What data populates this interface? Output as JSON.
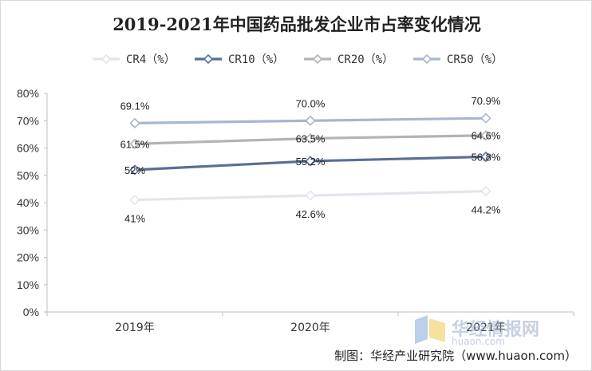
{
  "title": "2019-2021年中国药品批发企业市占率变化情况",
  "credit": "制图：华经产业研究院（www.huaon.com）",
  "watermark": {
    "text": "华经情报网",
    "url": "huaon.com"
  },
  "chart_data": {
    "type": "line",
    "categories": [
      "2019年",
      "2020年",
      "2021年"
    ],
    "series": [
      {
        "name": "CR4（%）",
        "values": [
          41,
          42.6,
          44.2
        ],
        "labels": [
          "41%",
          "42.6%",
          "44.2%"
        ],
        "color": "#e2e6ec"
      },
      {
        "name": "CR10（%）",
        "values": [
          52,
          55.2,
          56.8
        ],
        "labels": [
          "52%",
          "55.2%",
          "56.8%"
        ],
        "color": "#5a6f94"
      },
      {
        "name": "CR20（%）",
        "values": [
          61.5,
          63.5,
          64.6
        ],
        "labels": [
          "61.5%",
          "63.5%",
          "64.6%"
        ],
        "color": "#b0b6b0"
      },
      {
        "name": "CR50（%）",
        "values": [
          69.1,
          70.0,
          70.9
        ],
        "labels": [
          "69.1%",
          "70.0%",
          "70.9%"
        ],
        "color": "#a8b6cf"
      }
    ],
    "ylim": [
      0,
      80
    ],
    "yticks": [
      0,
      10,
      20,
      30,
      40,
      50,
      60,
      70,
      80
    ],
    "ytick_labels": [
      "0%",
      "10%",
      "20%",
      "30%",
      "40%",
      "50%",
      "60%",
      "70%",
      "80%"
    ],
    "grid": false,
    "legend": "top",
    "marker": "diamond"
  }
}
